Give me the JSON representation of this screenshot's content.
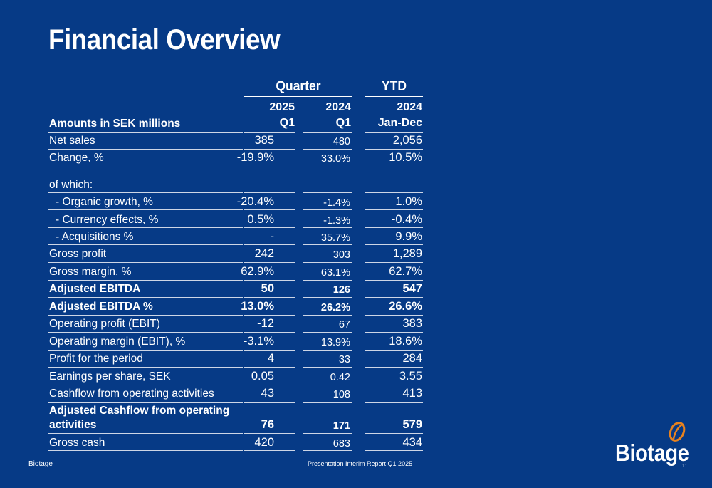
{
  "title": "Financial Overview",
  "header": {
    "group_quarter": "Quarter",
    "group_ytd": "YTD",
    "row_label": "Amounts in SEK millions",
    "col1_year": "2025",
    "col1_period": "Q1",
    "col2_year": "2024",
    "col2_period": "Q1",
    "col3_year": "2024",
    "col3_period": "Jan-Dec"
  },
  "rows": [
    {
      "label": "Net sales",
      "v1": "385",
      "v2": "480",
      "v3": "2,056"
    },
    {
      "label": "Change, %",
      "v1": "-19.9%",
      "v2": "33.0%",
      "v3": "10.5%"
    },
    {
      "label": "of which:",
      "v1": "",
      "v2": "",
      "v3": ""
    },
    {
      "label": "-  Organic growth, %",
      "v1": "-20.4%",
      "v2": "-1.4%",
      "v3": "1.0%"
    },
    {
      "label": "-  Currency effects, %",
      "v1": "0.5%",
      "v2": "-1.3%",
      "v3": "-0.4%"
    },
    {
      "label": "-  Acquisitions %",
      "v1": "-",
      "v2": "35.7%",
      "v3": "9.9%"
    },
    {
      "label": "Gross profit",
      "v1": "242",
      "v2": "303",
      "v3": "1,289"
    },
    {
      "label": "Gross margin, %",
      "v1": "62.9%",
      "v2": "63.1%",
      "v3": "62.7%"
    },
    {
      "label": "Adjusted EBITDA",
      "v1": "50",
      "v2": "126",
      "v3": "547"
    },
    {
      "label": "Adjusted EBITDA %",
      "v1": "13.0%",
      "v2": "26.2%",
      "v3": "26.6%"
    },
    {
      "label": "Operating profit (EBIT)",
      "v1": "-12",
      "v2": "67",
      "v3": "383"
    },
    {
      "label": "Operating margin (EBIT), %",
      "v1": "-3.1%",
      "v2": "13.9%",
      "v3": "18.6%"
    },
    {
      "label": "Profit for the period",
      "v1": "4",
      "v2": "33",
      "v3": "284"
    },
    {
      "label": "Earnings per share, SEK",
      "v1": "0.05",
      "v2": "0.42",
      "v3": "3.55"
    },
    {
      "label": "Cashflow from operating activities",
      "v1": "43",
      "v2": "108",
      "v3": "413"
    },
    {
      "label_line1": "Adjusted Cashflow from operating",
      "label_line2": "activities",
      "v1": "76",
      "v2": "171",
      "v3": "579"
    },
    {
      "label": "Gross cash",
      "v1": "420",
      "v2": "683",
      "v3": "434"
    }
  ],
  "footer": {
    "left": "Biotage",
    "center": "Presentation Interim Report Q1 2025",
    "page": "11"
  },
  "logo": {
    "text": "Biotage",
    "brand_color": "#e8821e"
  }
}
